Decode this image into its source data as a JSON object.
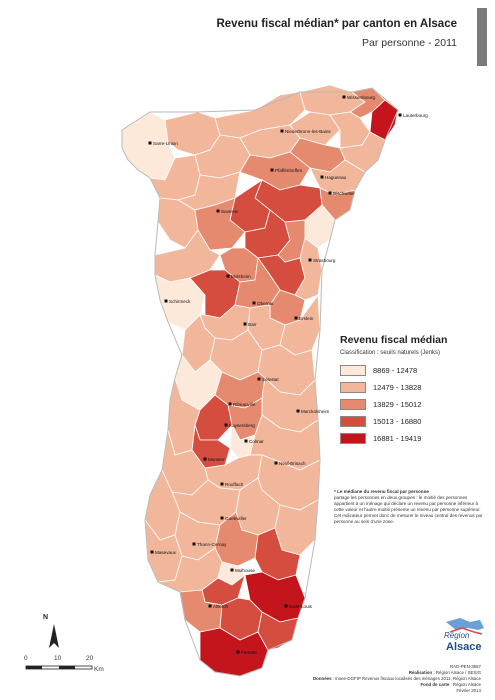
{
  "title": "Revenu fiscal médian* par canton en Alsace",
  "subtitle": "Par personne - 2011",
  "legend": {
    "title": "Revenu fiscal médian",
    "subtitle": "Classification : seuils naturels (Jenks)",
    "classes": [
      {
        "label": "8869 - 12478",
        "color": "#fde9d9"
      },
      {
        "label": "12479 - 13828",
        "color": "#f2b79b"
      },
      {
        "label": "13829 - 15012",
        "color": "#e58a6e"
      },
      {
        "label": "15013 - 16880",
        "color": "#d54d3f"
      },
      {
        "label": "16881 - 19419",
        "color": "#c4141c"
      }
    ]
  },
  "note": {
    "title": "* Le médiane du revenu fiscal par personne",
    "body": "partage les personnes en deux groupes : le moitié des personnes appartient à un ménage qui déclare un revenu par personne inférieur à cette valeur et l'autre moitié présente un revenu par personne supérieur. Cet indicateur permet donc de mesurer le niveau central des revenus par personne au sein d'une zone."
  },
  "towns": [
    {
      "name": "Wissembourg"
    },
    {
      "name": "Lauterbourg"
    },
    {
      "name": "Sarre-Union"
    },
    {
      "name": "Niederbronn-les-Bains"
    },
    {
      "name": "Pfaffenhoffen"
    },
    {
      "name": "Haguenau"
    },
    {
      "name": "Bischwiller"
    },
    {
      "name": "Saverne"
    },
    {
      "name": "Strasbourg"
    },
    {
      "name": "Molsheim"
    },
    {
      "name": "Schirmeck"
    },
    {
      "name": "Obernai"
    },
    {
      "name": "Erstein"
    },
    {
      "name": "Barr"
    },
    {
      "name": "Sélestat"
    },
    {
      "name": "Ribeauvillé"
    },
    {
      "name": "Marckolsheim"
    },
    {
      "name": "Kaysersberg"
    },
    {
      "name": "Colmar"
    },
    {
      "name": "Munster"
    },
    {
      "name": "Neuf-Brisach"
    },
    {
      "name": "Rouffach"
    },
    {
      "name": "Guebwiller"
    },
    {
      "name": "Thann-Cernay"
    },
    {
      "name": "Masevaux"
    },
    {
      "name": "Mulhouse"
    },
    {
      "name": "Saint-Louis"
    },
    {
      "name": "Altkirch"
    },
    {
      "name": "Ferrette"
    }
  ],
  "scale": {
    "labels": [
      "0",
      "10",
      "20"
    ],
    "unit": "Km"
  },
  "north": "N",
  "logo": {
    "line1": "Région",
    "line2": "Alsace"
  },
  "credits": {
    "line1": "RAD-PEN-3587",
    "line2_key": "Réalisation",
    "line2": " : Région Alsace / SESIG",
    "line3_key": "Données",
    "line3": " : Insee-DGFIP Revenus fiscaux localisés des ménages 2011, Région Alsace",
    "line4_key": "Fond de carte",
    "line4": " : Région Alsace",
    "line5": "Février 2014"
  }
}
